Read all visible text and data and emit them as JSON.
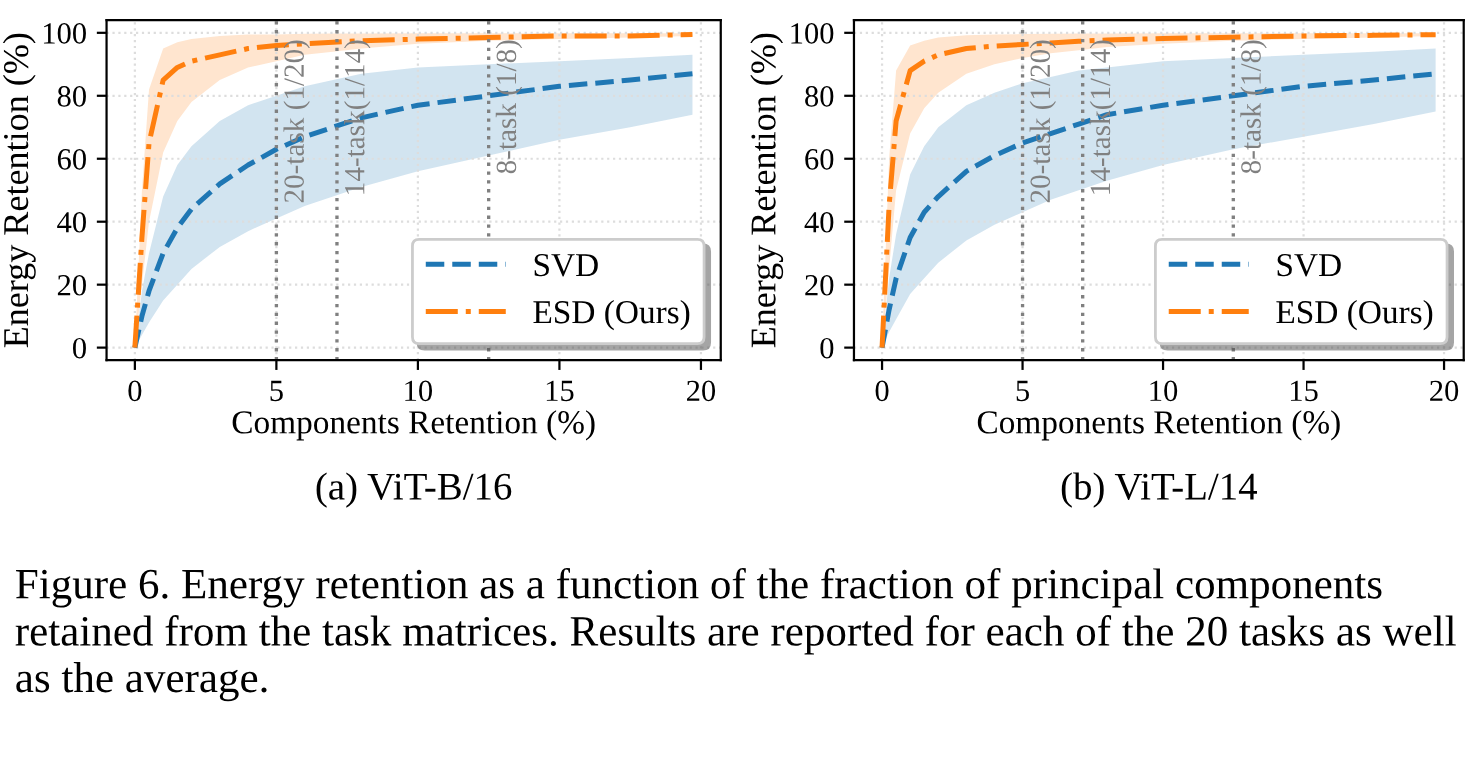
{
  "chart_data": [
    {
      "type": "line",
      "title": "(a) ViT-B/16",
      "xlabel": "Components Retention (%)",
      "ylabel": "Energy Retention (%)",
      "x": [
        0,
        0.25,
        0.5,
        1,
        1.5,
        2,
        3,
        4,
        5,
        6,
        7,
        8,
        10,
        12.5,
        15,
        17.5,
        19.7
      ],
      "series": [
        {
          "name": "SVD",
          "color": "#1f77b4",
          "line_style": "dashed",
          "values": [
            0,
            10,
            18,
            30,
            38,
            44,
            52,
            58,
            63,
            67,
            70,
            73,
            77,
            80,
            83,
            85,
            87
          ],
          "lower": [
            0,
            4,
            8,
            15,
            20,
            25,
            32,
            37,
            41,
            45,
            48,
            51,
            56,
            61,
            66,
            70,
            74
          ],
          "upper": [
            0,
            18,
            30,
            48,
            58,
            64,
            72,
            77,
            80,
            83,
            85,
            87,
            89,
            90,
            91,
            92,
            93
          ]
        },
        {
          "name": "ESD (Ours)",
          "color": "#ff7f0e",
          "line_style": "dashdot",
          "values": [
            0,
            35,
            65,
            85,
            89,
            91,
            93,
            95,
            96,
            96.5,
            97,
            97.5,
            98,
            98.5,
            99,
            99,
            99.5
          ],
          "lower": [
            0,
            20,
            40,
            62,
            72,
            78,
            85,
            89,
            91,
            93,
            94,
            95,
            96.5,
            97.5,
            98,
            98.5,
            99
          ],
          "upper": [
            0,
            50,
            82,
            95,
            97,
            98,
            99,
            99.5,
            99.5,
            99.7,
            99.8,
            99.8,
            99.9,
            99.9,
            99.9,
            99.9,
            99.9
          ]
        }
      ],
      "ref_lines": [
        {
          "axis": "x",
          "value": 5,
          "label": "20-task (1/20)",
          "color": "#808080",
          "line_style": "dotted"
        },
        {
          "axis": "x",
          "value": 7.14,
          "label": "14-task(1/14)",
          "color": "#808080",
          "line_style": "dotted"
        },
        {
          "axis": "x",
          "value": 12.5,
          "label": "8-task (1/8)",
          "color": "#808080",
          "line_style": "dotted"
        }
      ],
      "xlim": [
        -1,
        20.7
      ],
      "ylim": [
        -4,
        104
      ],
      "xticks": [
        0,
        5,
        10,
        15,
        20
      ],
      "yticks": [
        0,
        20,
        40,
        60,
        80,
        100
      ],
      "grid": true,
      "legend": "bottom right",
      "annotations": [
        "Figure 6. Energy retention as a function of the fraction of principal components retained from the task matrices. Results are reported for each of the 20 tasks as well as the average."
      ]
    },
    {
      "type": "line",
      "title": "(b) ViT-L/14",
      "xlabel": "Components Retention (%)",
      "ylabel": "Energy Retention (%)",
      "x": [
        0,
        0.25,
        0.5,
        1,
        1.5,
        2,
        3,
        4,
        5,
        6,
        7,
        8,
        10,
        12.5,
        15,
        17.5,
        19.7
      ],
      "series": [
        {
          "name": "SVD",
          "color": "#1f77b4",
          "line_style": "dashed",
          "values": [
            0,
            12,
            22,
            35,
            43,
            48,
            56,
            61,
            65,
            68,
            71,
            74,
            77,
            80,
            83,
            85,
            87
          ],
          "lower": [
            0,
            5,
            9,
            17,
            22,
            27,
            34,
            39,
            43,
            47,
            50,
            53,
            58,
            63,
            67,
            71,
            75
          ],
          "upper": [
            0,
            22,
            36,
            55,
            64,
            70,
            77,
            81,
            84,
            86,
            88,
            89,
            91,
            92,
            93,
            94,
            95
          ]
        },
        {
          "name": "ESD (Ours)",
          "color": "#ff7f0e",
          "line_style": "dashdot",
          "values": [
            0,
            45,
            72,
            88,
            91,
            93,
            95,
            95.8,
            96.3,
            96.8,
            97.3,
            97.7,
            98.2,
            98.6,
            99,
            99.2,
            99.4
          ],
          "lower": [
            0,
            25,
            50,
            68,
            76,
            81,
            87,
            90,
            92,
            93.5,
            94.5,
            95.5,
            96.5,
            97.5,
            98,
            98.5,
            99
          ],
          "upper": [
            0,
            60,
            88,
            96,
            97.5,
            98.5,
            99.2,
            99.5,
            99.6,
            99.7,
            99.8,
            99.8,
            99.9,
            99.9,
            99.9,
            99.9,
            99.9
          ]
        }
      ],
      "ref_lines": [
        {
          "axis": "x",
          "value": 5,
          "label": "20-task (1/20)",
          "color": "#808080",
          "line_style": "dotted"
        },
        {
          "axis": "x",
          "value": 7.14,
          "label": "14-task(1/14)",
          "color": "#808080",
          "line_style": "dotted"
        },
        {
          "axis": "x",
          "value": 12.5,
          "label": "8-task (1/8)",
          "color": "#808080",
          "line_style": "dotted"
        }
      ],
      "xlim": [
        -1,
        20.7
      ],
      "ylim": [
        -4,
        104
      ],
      "xticks": [
        0,
        5,
        10,
        15,
        20
      ],
      "yticks": [
        0,
        20,
        40,
        60,
        80,
        100
      ],
      "grid": true,
      "legend": "bottom right"
    }
  ]
}
